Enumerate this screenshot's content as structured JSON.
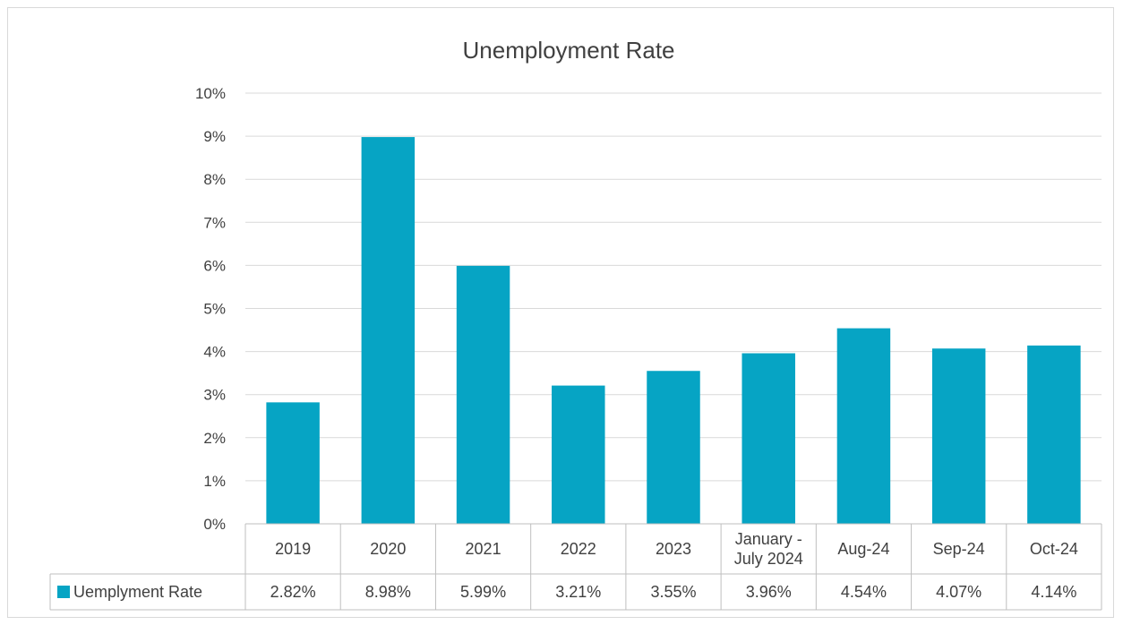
{
  "chart_data": {
    "type": "bar",
    "title": "Unemployment Rate",
    "categories": [
      "2019",
      "2020",
      "2021",
      "2022",
      "2023",
      "January - July 2024",
      "Aug-24",
      "Sep-24",
      "Oct-24"
    ],
    "category_lines": [
      [
        "2019"
      ],
      [
        "2020"
      ],
      [
        "2021"
      ],
      [
        "2022"
      ],
      [
        "2023"
      ],
      [
        "January -",
        "July 2024"
      ],
      [
        "Aug-24"
      ],
      [
        "Sep-24"
      ],
      [
        "Oct-24"
      ]
    ],
    "series": [
      {
        "name": "Uemplyment Rate",
        "values": [
          2.82,
          8.98,
          5.99,
          3.21,
          3.55,
          3.96,
          4.54,
          4.07,
          4.14
        ],
        "value_labels": [
          "2.82%",
          "8.98%",
          "5.99%",
          "3.21%",
          "3.55%",
          "3.96%",
          "4.54%",
          "4.07%",
          "4.14%"
        ],
        "color": "#06a4c4"
      }
    ],
    "ylim": [
      0,
      10
    ],
    "yticks": [
      "0%",
      "1%",
      "2%",
      "3%",
      "4%",
      "5%",
      "6%",
      "7%",
      "8%",
      "9%",
      "10%"
    ],
    "grid": true,
    "legend": "data-table",
    "xlabel": "",
    "ylabel": ""
  }
}
